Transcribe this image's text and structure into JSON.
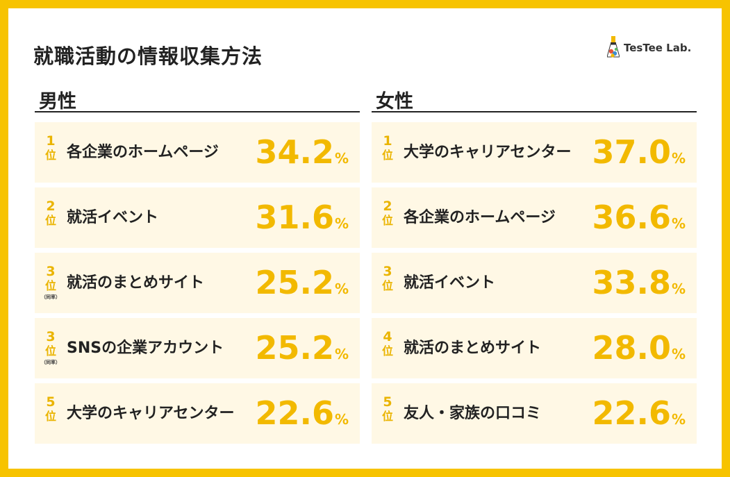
{
  "title": "就職活動の情報収集方法",
  "logo": {
    "text": "TesTee Lab.",
    "icon": "flask-logo-icon"
  },
  "colors": {
    "border": "#F7C300",
    "row_bg": "#FFF8E5",
    "rank": "#EAB400",
    "value": "#F2B900",
    "text": "#222222"
  },
  "chart_data": {
    "type": "table",
    "title": "就職活動の情報収集方法",
    "unit": "%",
    "rank_unit": "位",
    "groups": [
      {
        "name": "男性",
        "rows": [
          {
            "rank": "1",
            "label": "各企業のホームページ",
            "value": 34.2,
            "display": "34.2",
            "note": ""
          },
          {
            "rank": "2",
            "label": "就活イベント",
            "value": 31.6,
            "display": "31.6",
            "note": ""
          },
          {
            "rank": "3",
            "label": "就活のまとめサイト",
            "value": 25.2,
            "display": "25.2",
            "note": "（同率）"
          },
          {
            "rank": "3",
            "label": "SNSの企業アカウント",
            "value": 25.2,
            "display": "25.2",
            "note": "（同率）"
          },
          {
            "rank": "5",
            "label": "大学のキャリアセンター",
            "value": 22.6,
            "display": "22.6",
            "note": ""
          }
        ]
      },
      {
        "name": "女性",
        "rows": [
          {
            "rank": "1",
            "label": "大学のキャリアセンター",
            "value": 37.0,
            "display": "37.0",
            "note": ""
          },
          {
            "rank": "2",
            "label": "各企業のホームページ",
            "value": 36.6,
            "display": "36.6",
            "note": ""
          },
          {
            "rank": "3",
            "label": "就活イベント",
            "value": 33.8,
            "display": "33.8",
            "note": ""
          },
          {
            "rank": "4",
            "label": "就活のまとめサイト",
            "value": 28.0,
            "display": "28.0",
            "note": ""
          },
          {
            "rank": "5",
            "label": "友人・家族の口コミ",
            "value": 22.6,
            "display": "22.6",
            "note": ""
          }
        ]
      }
    ]
  }
}
